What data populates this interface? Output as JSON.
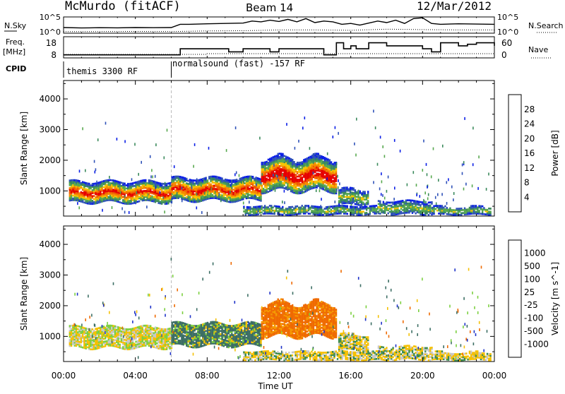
{
  "header": {
    "station": "McMurdo (fitACF)",
    "beam": "Beam 14",
    "date": "12/Mar/2012"
  },
  "colors": {
    "power": [
      "#0a1ee6",
      "#2f52b8",
      "#3b8a5c",
      "#57a84e",
      "#f5c400",
      "#f58a00",
      "#ef5a00",
      "#e60000"
    ],
    "velocity": [
      "#1e32c8",
      "#3c6e64",
      "#3c8c50",
      "#7cd040",
      "#c8c8c8",
      "#f5c000",
      "#f59a00",
      "#ef6a00",
      "#e10000"
    ],
    "line": "#000000"
  },
  "chart_data": [
    {
      "type": "line",
      "panel": "noise",
      "left_label": "N.Sky",
      "right_label": "N.Search",
      "left_ticks": [
        "10^5",
        "10^0"
      ],
      "right_ticks": [
        "10^5",
        "10^0"
      ],
      "series": [
        {
          "name": "N.Sky",
          "style": "solid",
          "x": [
            0,
            1,
            2,
            3,
            4,
            5,
            6,
            6.5,
            7,
            8,
            9,
            10,
            10.5,
            11,
            11.5,
            12,
            12.5,
            13,
            13.5,
            14,
            14.5,
            15,
            15.5,
            16,
            16.5,
            17,
            17.5,
            18,
            18.5,
            19,
            19.5,
            20,
            20.5,
            21,
            22,
            23,
            24
          ],
          "y": [
            0.35,
            0.32,
            0.34,
            0.33,
            0.35,
            0.34,
            0.35,
            0.55,
            0.55,
            0.58,
            0.6,
            0.62,
            0.75,
            0.7,
            0.8,
            0.72,
            0.85,
            0.7,
            0.9,
            0.65,
            0.75,
            0.7,
            0.55,
            0.6,
            0.5,
            0.62,
            0.75,
            0.65,
            0.8,
            0.6,
            0.9,
            0.95,
            0.6,
            0.55,
            0.58,
            0.56,
            0.55
          ]
        },
        {
          "name": "N.Search",
          "style": "dotted",
          "x": [
            0,
            2,
            4,
            6,
            8,
            10,
            12,
            14,
            16,
            18,
            20,
            22,
            24
          ],
          "y": [
            0.1,
            0.1,
            0.11,
            0.1,
            0.14,
            0.15,
            0.2,
            0.2,
            0.18,
            0.25,
            0.22,
            0.2,
            0.2
          ]
        }
      ]
    },
    {
      "type": "line",
      "panel": "frequency",
      "left_label": "Freq.",
      "left_unit": "[MHz]",
      "right_label": "Nave",
      "left_ticks": [
        18,
        8
      ],
      "right_ticks": [
        60,
        0
      ],
      "series": [
        {
          "name": "Freq.",
          "style": "solid",
          "x": [
            0,
            2,
            4,
            6,
            6.5,
            8,
            9,
            9.2,
            10,
            11,
            11.5,
            12,
            13,
            14,
            14.5,
            15,
            15.2,
            15.6,
            16,
            16.3,
            17,
            18,
            19,
            20,
            20.5,
            21,
            22,
            22.5,
            23,
            24
          ],
          "y": [
            8,
            8,
            8,
            8,
            12,
            12,
            12,
            10,
            12,
            12,
            10,
            12,
            12,
            12,
            8,
            8,
            16,
            12,
            14,
            12,
            16,
            14,
            14,
            12,
            10,
            16,
            14,
            15,
            16,
            14
          ]
        },
        {
          "name": "Nave",
          "style": "dotted",
          "x": [
            0,
            4,
            8,
            12,
            16,
            20,
            24
          ],
          "y": [
            10,
            10,
            12,
            12,
            12,
            12,
            12
          ]
        }
      ]
    },
    {
      "type": "table",
      "panel": "cpid",
      "label": "CPID",
      "segments": [
        {
          "start": 0,
          "end": 6,
          "text": "themis 3300 RF"
        },
        {
          "start": 6,
          "end": 24,
          "text": "normalsound (fast) -157 RF"
        }
      ]
    },
    {
      "type": "heatmap",
      "panel": "power",
      "ylabel": "Slant Range [km]",
      "yticks": [
        1000,
        2000,
        3000,
        4000
      ],
      "ylim": [
        180,
        4600
      ],
      "colorbar_label": "Power [dB]",
      "colorbar_ticks": [
        "28",
        "24",
        "20",
        "16",
        "12",
        "8",
        "4"
      ],
      "clim": [
        0,
        32
      ]
    },
    {
      "type": "heatmap",
      "panel": "velocity",
      "ylabel": "Slant Range [km]",
      "yticks": [
        1000,
        2000,
        3000,
        4000
      ],
      "ylim": [
        180,
        4600
      ],
      "colorbar_label": "Velocity [m s^-1]",
      "colorbar_ticks": [
        "1000",
        "500",
        "100",
        "25",
        "-25",
        "-100",
        "-500",
        "-1000"
      ],
      "xlabel": "Time UT",
      "xticks": [
        "00:00",
        "04:00",
        "08:00",
        "12:00",
        "16:00",
        "20:00",
        "00:00"
      ],
      "xlim": [
        0,
        24
      ]
    }
  ]
}
